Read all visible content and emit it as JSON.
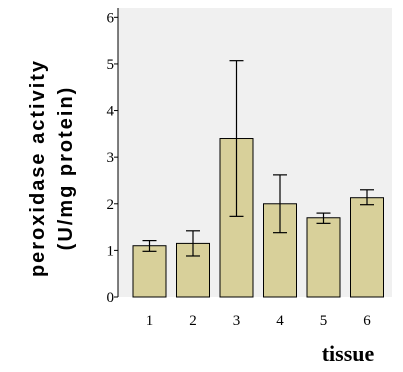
{
  "chart_data": {
    "type": "bar",
    "title": "",
    "xlabel": "tissue",
    "ylabel_line1": "peroxidase activity",
    "ylabel_line2": "(U/mg protein)",
    "categories": [
      "1",
      "2",
      "3",
      "4",
      "5",
      "6"
    ],
    "values": [
      1.1,
      1.15,
      3.4,
      2.0,
      1.7,
      2.13
    ],
    "error_low": [
      0.98,
      0.88,
      1.73,
      1.38,
      1.58,
      1.98
    ],
    "error_high": [
      1.21,
      1.42,
      5.07,
      2.62,
      1.8,
      2.3
    ],
    "ylim": [
      0,
      6.2
    ],
    "yticks": [
      0,
      1,
      2,
      3,
      4,
      5,
      6
    ],
    "grid": false,
    "colors": {
      "bar_fill": "#d8d09a",
      "bar_stroke": "#000000",
      "plot_background": "#f0f0f0",
      "axis": "#000000"
    }
  }
}
